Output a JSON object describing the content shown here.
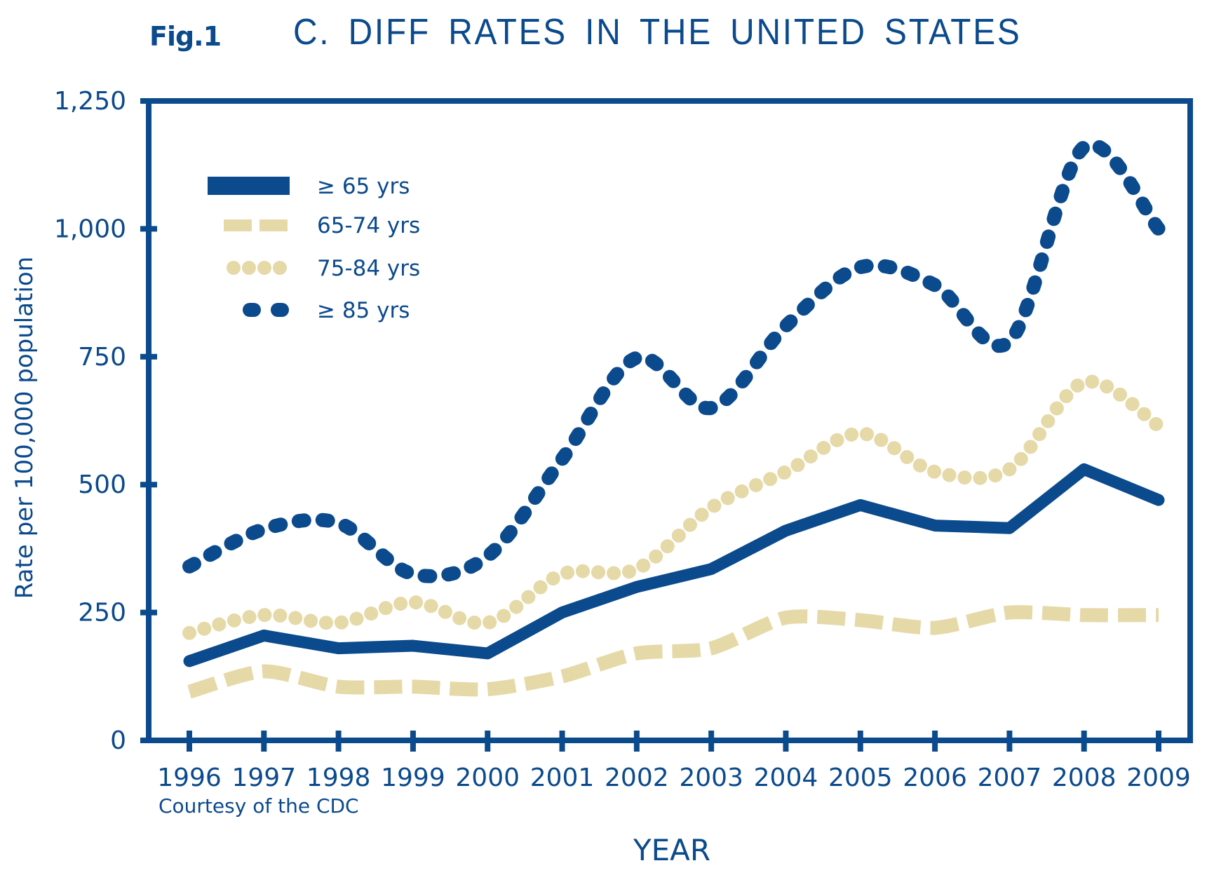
{
  "figure_label": "Fig.1",
  "chart_data": {
    "type": "line",
    "title": "C. DIFF RATES IN THE UNITED STATES",
    "xlabel": "YEAR",
    "ylabel": "Rate per 100,000 population",
    "credit": "Courtesy of the CDC",
    "x": [
      1996,
      1997,
      1998,
      1999,
      2000,
      2001,
      2002,
      2003,
      2004,
      2005,
      2006,
      2007,
      2008,
      2009
    ],
    "x_tick_labels": [
      "1996",
      "1997",
      "1998",
      "1999",
      "2000",
      "2001",
      "2002",
      "2003",
      "2004",
      "2005",
      "2006",
      "2007",
      "2008",
      "2009"
    ],
    "y_ticks": [
      0,
      250,
      500,
      750,
      1000,
      1250
    ],
    "y_tick_labels": [
      "0",
      "250",
      "500",
      "750",
      "1,000",
      "1,250"
    ],
    "ylim": [
      0,
      1250
    ],
    "grid": false,
    "legend_position": "top-left",
    "colors": {
      "navy": "#0b4a8c",
      "tan": "#e6d9a8"
    },
    "series": [
      {
        "name": "≥ 65 yrs",
        "style": "solid",
        "color": "#0b4a8c",
        "values": [
          155,
          205,
          180,
          185,
          170,
          250,
          300,
          335,
          410,
          460,
          420,
          415,
          530,
          470
        ]
      },
      {
        "name": "65-74 yrs",
        "style": "dashed",
        "color": "#e6d9a8",
        "values": [
          95,
          135,
          105,
          105,
          100,
          125,
          170,
          180,
          240,
          235,
          220,
          250,
          245,
          245
        ]
      },
      {
        "name": "75-84 yrs",
        "style": "dotted",
        "color": "#e6d9a8",
        "values": [
          210,
          245,
          230,
          270,
          230,
          325,
          335,
          455,
          525,
          600,
          525,
          530,
          700,
          615
        ]
      },
      {
        "name": "≥ 85 yrs",
        "style": "rounded-dash",
        "color": "#0b4a8c",
        "values": [
          340,
          413,
          425,
          325,
          360,
          550,
          748,
          650,
          810,
          925,
          890,
          780,
          1160,
          1000
        ]
      }
    ]
  }
}
